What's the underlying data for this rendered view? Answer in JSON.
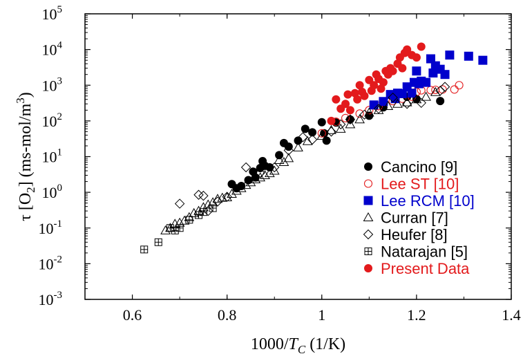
{
  "chart_data": {
    "type": "scatter",
    "title": "",
    "xlabel": "1000/T_C (1/K)",
    "ylabel": "τ [O2] (ms-mol/m3)",
    "xlim": [
      0.5,
      1.4
    ],
    "ylim": [
      0.001,
      100000
    ],
    "yscale": "log",
    "x_ticks": [
      "0.6",
      "0.8",
      "1",
      "1.2",
      "1.4"
    ],
    "y_ticks": [
      "10-3",
      "10-2",
      "10-1",
      "100",
      "101",
      "102",
      "103",
      "104",
      "105"
    ],
    "legend_placement": "bottom-right",
    "grid": false,
    "series": [
      {
        "name": "Cancino [9]",
        "marker": "filled-circle",
        "color": "#000000",
        "points": [
          [
            0.81,
            1.7
          ],
          [
            0.82,
            1.3
          ],
          [
            0.83,
            1.5
          ],
          [
            0.845,
            2.2
          ],
          [
            0.855,
            3.8
          ],
          [
            0.86,
            2.6
          ],
          [
            0.87,
            4.8
          ],
          [
            0.875,
            7.5
          ],
          [
            0.88,
            5.5
          ],
          [
            0.89,
            5.0
          ],
          [
            0.91,
            11
          ],
          [
            0.92,
            24
          ],
          [
            0.93,
            19
          ],
          [
            0.95,
            28
          ],
          [
            0.965,
            60
          ],
          [
            0.98,
            48
          ],
          [
            1.0,
            92
          ],
          [
            1.005,
            45
          ],
          [
            1.01,
            28
          ],
          [
            1.03,
            90
          ],
          [
            1.06,
            110
          ],
          [
            1.1,
            140
          ],
          [
            1.13,
            240
          ],
          [
            1.18,
            470
          ],
          [
            1.2,
            410
          ],
          [
            1.25,
            360
          ]
        ]
      },
      {
        "name": "Lee ST [10]",
        "marker": "open-circle",
        "color": "#e31a1c",
        "points": [
          [
            1.0,
            45
          ],
          [
            1.03,
            95
          ],
          [
            1.05,
            120
          ],
          [
            1.08,
            160
          ],
          [
            1.1,
            200
          ],
          [
            1.12,
            260
          ],
          [
            1.15,
            360
          ],
          [
            1.17,
            420
          ],
          [
            1.19,
            480
          ],
          [
            1.2,
            650
          ],
          [
            1.21,
            720
          ],
          [
            1.23,
            730
          ],
          [
            1.24,
            740
          ],
          [
            1.255,
            760
          ],
          [
            1.28,
            760
          ],
          [
            1.29,
            1000
          ]
        ]
      },
      {
        "name": "Lee RCM [10]",
        "marker": "filled-square",
        "color": "#0000cc",
        "points": [
          [
            1.11,
            280
          ],
          [
            1.13,
            350
          ],
          [
            1.145,
            550
          ],
          [
            1.155,
            420
          ],
          [
            1.16,
            600
          ],
          [
            1.17,
            580
          ],
          [
            1.18,
            900
          ],
          [
            1.19,
            600
          ],
          [
            1.195,
            1200
          ],
          [
            1.2,
            2500
          ],
          [
            1.205,
            1100
          ],
          [
            1.21,
            1300
          ],
          [
            1.22,
            1200
          ],
          [
            1.23,
            5500
          ],
          [
            1.235,
            2200
          ],
          [
            1.24,
            3500
          ],
          [
            1.25,
            2800
          ],
          [
            1.26,
            2000
          ],
          [
            1.27,
            7000
          ],
          [
            1.31,
            6500
          ],
          [
            1.34,
            5000
          ]
        ]
      },
      {
        "name": "Curran [7]",
        "marker": "open-triangle",
        "color": "#000000",
        "points": [
          [
            0.67,
            0.085
          ],
          [
            0.68,
            0.1
          ],
          [
            0.69,
            0.13
          ],
          [
            0.7,
            0.14
          ],
          [
            0.71,
            0.16
          ],
          [
            0.72,
            0.2
          ],
          [
            0.73,
            0.26
          ],
          [
            0.74,
            0.3
          ],
          [
            0.75,
            0.38
          ],
          [
            0.76,
            0.45
          ],
          [
            0.77,
            0.52
          ],
          [
            0.78,
            0.65
          ],
          [
            0.79,
            0.7
          ],
          [
            0.8,
            0.72
          ],
          [
            0.81,
            0.9
          ],
          [
            0.82,
            1.1
          ],
          [
            0.83,
            1.3
          ],
          [
            0.84,
            1.6
          ],
          [
            0.85,
            1.9
          ],
          [
            0.86,
            2.3
          ],
          [
            0.87,
            2.6
          ],
          [
            0.88,
            3.0
          ],
          [
            0.89,
            3.4
          ],
          [
            0.9,
            4.0
          ],
          [
            0.91,
            8.0
          ],
          [
            0.92,
            7.0
          ],
          [
            0.93,
            9.0
          ],
          [
            0.95,
            18
          ],
          [
            0.97,
            27
          ],
          [
            1.0,
            38
          ],
          [
            1.02,
            55
          ],
          [
            1.04,
            60
          ],
          [
            1.06,
            80
          ],
          [
            1.08,
            110
          ],
          [
            1.1,
            170
          ],
          [
            1.12,
            200
          ],
          [
            1.14,
            260
          ],
          [
            1.16,
            300
          ],
          [
            1.18,
            330
          ],
          [
            1.2,
            400
          ],
          [
            1.22,
            470
          ],
          [
            1.24,
            640
          ]
        ]
      },
      {
        "name": "Heufer [8]",
        "marker": "open-diamond",
        "color": "#000000",
        "points": [
          [
            0.7,
            0.48
          ],
          [
            0.74,
            0.85
          ],
          [
            0.75,
            0.8
          ],
          [
            0.76,
            0.3
          ],
          [
            0.78,
            0.55
          ],
          [
            0.8,
            0.75
          ],
          [
            0.84,
            5.0
          ],
          [
            0.87,
            3.5
          ],
          [
            0.9,
            5.0
          ],
          [
            0.93,
            15
          ],
          [
            0.96,
            35
          ],
          [
            0.98,
            30
          ],
          [
            1.02,
            50
          ],
          [
            1.04,
            80
          ],
          [
            1.06,
            110
          ],
          [
            1.09,
            150
          ],
          [
            1.12,
            220
          ],
          [
            1.15,
            450
          ],
          [
            1.18,
            300
          ],
          [
            1.21,
            320
          ],
          [
            1.25,
            700
          ],
          [
            1.26,
            900
          ]
        ]
      },
      {
        "name": "Natarajan [5]",
        "marker": "boxed-plus",
        "color": "#000000",
        "points": [
          [
            0.625,
            0.025
          ],
          [
            0.655,
            0.04
          ],
          [
            0.68,
            0.1
          ],
          [
            0.69,
            0.085
          ],
          [
            0.7,
            0.1
          ],
          [
            0.72,
            0.17
          ],
          [
            0.74,
            0.23
          ],
          [
            0.75,
            0.28
          ],
          [
            0.77,
            0.36
          ]
        ]
      },
      {
        "name": "Present Data",
        "marker": "filled-circle",
        "color": "#e31a1c",
        "points": [
          [
            1.02,
            100
          ],
          [
            1.03,
            400
          ],
          [
            1.04,
            220
          ],
          [
            1.05,
            300
          ],
          [
            1.055,
            550
          ],
          [
            1.06,
            200
          ],
          [
            1.07,
            600
          ],
          [
            1.075,
            400
          ],
          [
            1.08,
            1000
          ],
          [
            1.085,
            650
          ],
          [
            1.09,
            500
          ],
          [
            1.1,
            1400
          ],
          [
            1.105,
            700
          ],
          [
            1.11,
            1000
          ],
          [
            1.115,
            2000
          ],
          [
            1.12,
            1500
          ],
          [
            1.125,
            800
          ],
          [
            1.13,
            1200
          ],
          [
            1.135,
            2500
          ],
          [
            1.14,
            2000
          ],
          [
            1.145,
            3000
          ],
          [
            1.15,
            2500
          ],
          [
            1.16,
            4000
          ],
          [
            1.17,
            3000
          ],
          [
            1.18,
            10000
          ],
          [
            1.19,
            7000
          ],
          [
            1.2,
            6000
          ],
          [
            1.21,
            12000
          ],
          [
            1.165,
            6000
          ],
          [
            1.175,
            8000
          ]
        ]
      }
    ]
  }
}
